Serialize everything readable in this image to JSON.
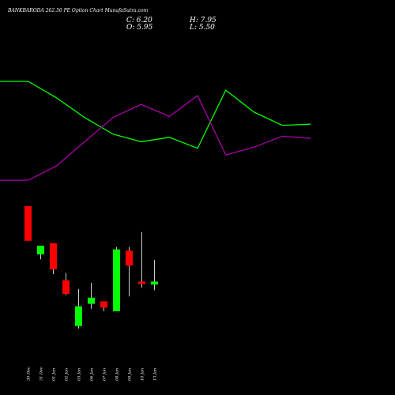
{
  "header": {
    "title": "BANKBARODA 262.50 PE Option Chart MunafaSutra.com",
    "close": "C: 6.20",
    "open": "O: 5.95",
    "high": "H: 7.95",
    "low": "L: 5.50"
  },
  "colors": {
    "background": "#000000",
    "up": "#00ff00",
    "down": "#ff0000",
    "line_green": "#00ff00",
    "line_magenta": "#aa00aa",
    "wick": "#ffffff",
    "text": "#ffffff"
  },
  "chart_data": [
    {
      "type": "line",
      "title": "",
      "series": [
        {
          "color": "#00ff00",
          "values": [
            0.95,
            0.95,
            0.8,
            0.62,
            0.47,
            0.4,
            0.44,
            0.34,
            0.87,
            0.67,
            0.55,
            0.56
          ]
        },
        {
          "color": "#aa00aa",
          "values": [
            0.05,
            0.05,
            0.18,
            0.4,
            0.62,
            0.74,
            0.63,
            0.82,
            0.28,
            0.35,
            0.45,
            0.43
          ]
        }
      ]
    },
    {
      "type": "candlestick",
      "title": "",
      "categories": [
        "30 Dec",
        "31 Dec",
        "01 Jan",
        "02 Jan",
        "03 Jan",
        "06 Jan",
        "07 Jan",
        "08 Jan",
        "09 Jan",
        "10 Jan",
        "13 Jan"
      ],
      "candles": [
        {
          "open": 12.3,
          "high": 12.3,
          "low": 9.5,
          "close": 9.5
        },
        {
          "open": 8.4,
          "high": 9.1,
          "low": 8.0,
          "close": 9.1
        },
        {
          "open": 9.3,
          "high": 9.3,
          "low": 6.8,
          "close": 7.2
        },
        {
          "open": 6.3,
          "high": 6.9,
          "low": 5.1,
          "close": 5.2
        },
        {
          "open": 2.6,
          "high": 5.6,
          "low": 2.4,
          "close": 4.2
        },
        {
          "open": 4.4,
          "high": 6.1,
          "low": 4.0,
          "close": 4.9
        },
        {
          "open": 4.6,
          "high": 4.6,
          "low": 3.8,
          "close": 4.1
        },
        {
          "open": 3.8,
          "high": 9.0,
          "low": 3.8,
          "close": 8.8
        },
        {
          "open": 8.7,
          "high": 9.0,
          "low": 5.0,
          "close": 7.5
        },
        {
          "open": 6.2,
          "high": 10.2,
          "low": 5.7,
          "close": 6.0
        },
        {
          "open": 5.95,
          "high": 7.95,
          "low": 5.5,
          "close": 6.2
        }
      ]
    }
  ]
}
